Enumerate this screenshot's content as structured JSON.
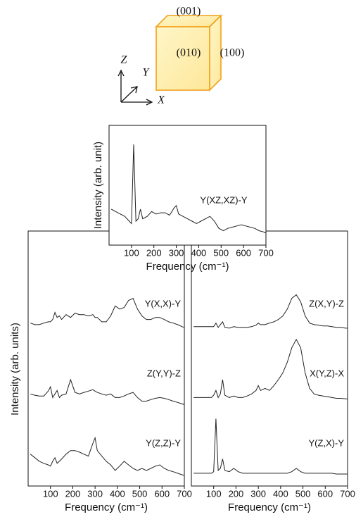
{
  "diagram": {
    "faces": [
      "(001)",
      "(010)",
      "(100)"
    ],
    "axes": [
      "Z",
      "Y",
      "X"
    ]
  },
  "chart_data": [
    {
      "type": "line",
      "x_label": "Frequency (cm⁻¹)",
      "y_label": "Intensity (arb. unit)",
      "xlim": [
        0,
        700
      ],
      "ylim": [
        0,
        100
      ],
      "xticks": [
        100,
        200,
        300,
        400,
        500,
        600,
        700
      ],
      "x": [
        10,
        30,
        50,
        70,
        90,
        100,
        110,
        120,
        130,
        140,
        150,
        170,
        190,
        210,
        230,
        250,
        270,
        290,
        300,
        310,
        330,
        350,
        370,
        390,
        410,
        430,
        450,
        470,
        490,
        510,
        530,
        550,
        570,
        590,
        610,
        630,
        650,
        670,
        690,
        700
      ],
      "series": [
        {
          "name": "Y(XZ,XZ)-Y",
          "color": "#222222",
          "values": [
            30,
            28,
            26,
            24,
            20,
            18,
            84,
            20,
            22,
            30,
            22,
            24,
            28,
            26,
            27,
            27,
            25,
            31,
            33,
            26,
            24,
            22,
            20,
            18,
            20,
            22,
            24,
            20,
            14,
            12,
            14,
            15,
            16,
            17,
            16,
            15,
            14,
            12,
            11,
            10
          ]
        }
      ]
    },
    {
      "type": "line",
      "x_label": "Frequency (cm⁻¹)",
      "y_label": "Intensity (arb. units)",
      "xlim": [
        0,
        700
      ],
      "ylim": [
        0,
        100
      ],
      "xticks": [
        100,
        200,
        300,
        400,
        500,
        600,
        700
      ],
      "x": [
        10,
        30,
        50,
        70,
        90,
        100,
        110,
        120,
        130,
        140,
        150,
        170,
        190,
        210,
        230,
        250,
        270,
        290,
        300,
        310,
        330,
        350,
        370,
        390,
        410,
        430,
        450,
        470,
        490,
        510,
        530,
        550,
        570,
        590,
        610,
        630,
        650,
        670,
        690,
        700
      ],
      "series": [
        {
          "name": "Y(X,X)-Y",
          "color": "#222222",
          "values": [
            63.9,
            63.3,
            63.3,
            63.9,
            64.4,
            64.4,
            65.3,
            68.1,
            66.1,
            66.7,
            65.3,
            67.2,
            66.1,
            67.8,
            67.2,
            67.2,
            66.7,
            67.2,
            66.1,
            66.1,
            64.4,
            64.4,
            66.7,
            70.6,
            69.4,
            70,
            72.8,
            73.6,
            69.4,
            66.7,
            65.3,
            65.3,
            66.1,
            66.1,
            65.3,
            64.4,
            63.9,
            63.3,
            62.5,
            62.2
          ]
        },
        {
          "name": "Z(Y,Y)-Z",
          "color": "#222222",
          "values": [
            36.1,
            35.6,
            35.3,
            35.3,
            37.2,
            38.9,
            34.7,
            36.1,
            37.5,
            34.7,
            35.6,
            36.1,
            41.7,
            36.7,
            36.1,
            36.7,
            37.2,
            37.8,
            37.2,
            36.7,
            36.1,
            35.6,
            36.1,
            34.7,
            34.7,
            35.3,
            36.1,
            36.7,
            34.7,
            33.3,
            33.3,
            33.9,
            34.4,
            34.7,
            34.4,
            33.9,
            33.3,
            32.8,
            32.2,
            31.9
          ]
        },
        {
          "name": "Y(Z,Z)-Y",
          "color": "#222222",
          "values": [
            12.5,
            11.1,
            9.7,
            8.9,
            8.3,
            7.8,
            9.7,
            11.1,
            8.9,
            9.7,
            10.6,
            12.5,
            13.9,
            13.9,
            13.3,
            12.5,
            11.7,
            16.7,
            18.9,
            13.9,
            11.7,
            9.7,
            8.3,
            6.1,
            7.8,
            9.7,
            8.3,
            6.9,
            6.1,
            6.9,
            6.1,
            6.9,
            7.8,
            8.3,
            6.9,
            6.1,
            5.6,
            5,
            4.4,
            4.2
          ]
        }
      ]
    },
    {
      "type": "line",
      "x_label": "Frequency (cm⁻¹)",
      "xlim": [
        0,
        700
      ],
      "ylim": [
        0,
        100
      ],
      "xticks": [
        100,
        200,
        300,
        400,
        500,
        600,
        700
      ],
      "x": [
        10,
        30,
        50,
        70,
        90,
        100,
        110,
        120,
        130,
        140,
        150,
        170,
        190,
        210,
        230,
        250,
        270,
        290,
        300,
        310,
        330,
        350,
        370,
        390,
        410,
        430,
        450,
        470,
        490,
        510,
        530,
        550,
        570,
        590,
        610,
        630,
        650,
        670,
        690,
        700
      ],
      "series": [
        {
          "name": "Z(X,Y)-Z",
          "color": "#222222",
          "values": [
            62.5,
            62.5,
            62.5,
            62.5,
            62.5,
            62.5,
            63.9,
            62.2,
            63.3,
            64.4,
            62.2,
            61.9,
            62.5,
            62.2,
            62.2,
            62.2,
            62.5,
            63.1,
            63.9,
            63.3,
            63.3,
            63.9,
            64.4,
            65.3,
            66.7,
            69.4,
            73.6,
            75,
            72.2,
            66.7,
            63.9,
            63.3,
            63.1,
            62.8,
            62.8,
            62.5,
            62.2,
            62.2,
            61.9,
            61.9
          ]
        },
        {
          "name": "X(Y,Z)-X",
          "color": "#222222",
          "values": [
            34.7,
            34.7,
            34.7,
            34.7,
            34.7,
            35.6,
            37.5,
            34.7,
            36.1,
            41.7,
            35.6,
            34.7,
            35.3,
            34.7,
            34.7,
            35.3,
            36.1,
            37.5,
            39.4,
            37.5,
            38.3,
            37.5,
            39.4,
            41.7,
            44.4,
            48.6,
            54.2,
            57.5,
            54.2,
            44.4,
            38.3,
            36.1,
            35.6,
            35.3,
            35,
            34.7,
            34.4,
            34.4,
            34.2,
            34.2
          ]
        },
        {
          "name": "Y(Z,X)-Y",
          "color": "#222222",
          "values": [
            5,
            5,
            5,
            5,
            5,
            5.6,
            26.4,
            6.1,
            6.9,
            10.6,
            6.1,
            5.6,
            6.9,
            5.6,
            5,
            5,
            5,
            5,
            5,
            5,
            5,
            5,
            5,
            5,
            5,
            5,
            5.6,
            6.9,
            5.6,
            5,
            5,
            5,
            5,
            5,
            5,
            5,
            4.7,
            4.7,
            4.7,
            4.7
          ]
        }
      ]
    }
  ]
}
